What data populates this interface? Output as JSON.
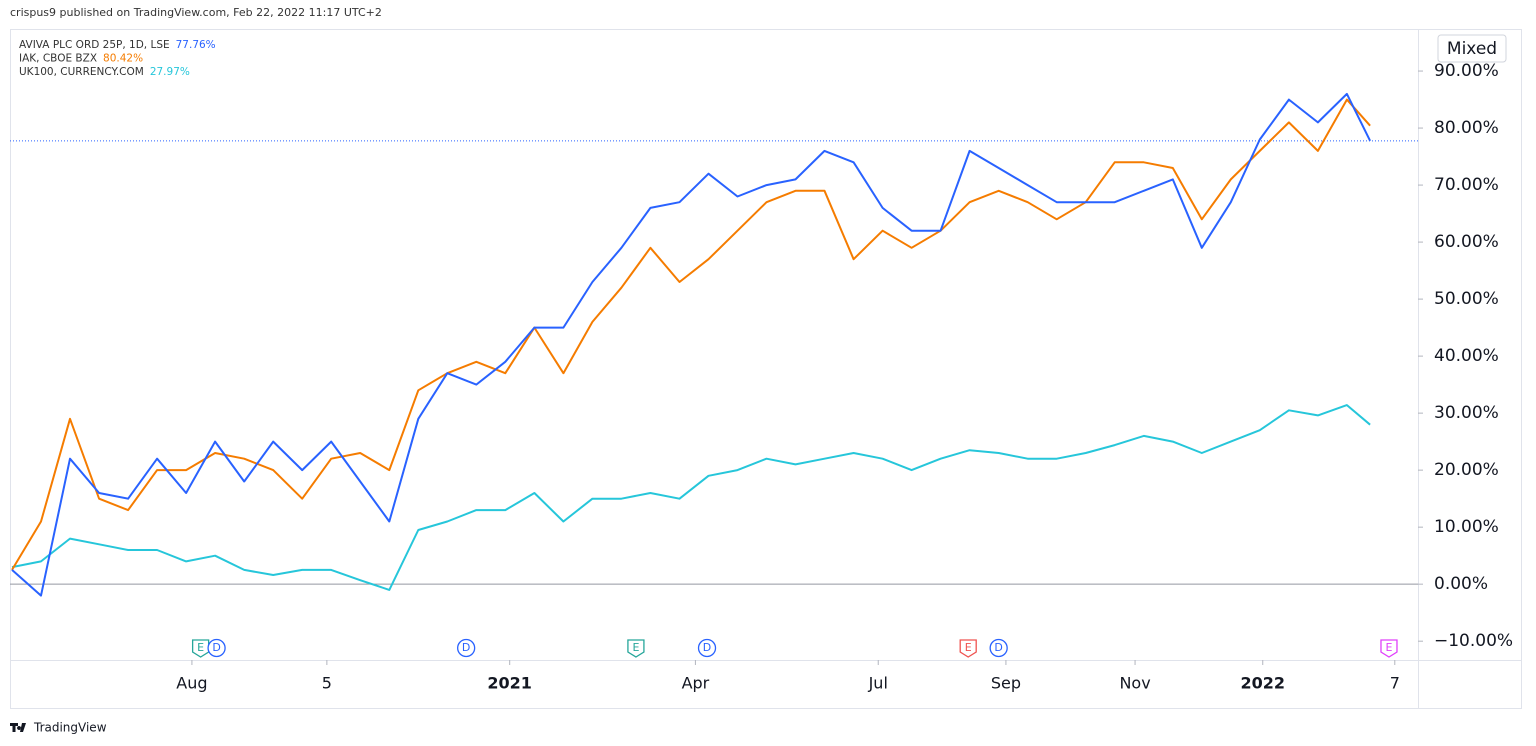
{
  "header": "crispus9 published on TradingView.com, Feb 22, 2022 11:17 UTC+2",
  "footer": "TradingView",
  "scale_button": "Mixed",
  "chart_data": {
    "type": "line",
    "x": [
      0,
      2,
      4,
      6,
      8,
      10,
      12,
      14,
      16,
      18,
      20,
      22,
      24,
      26,
      28,
      30,
      32,
      34,
      36,
      38,
      40,
      42,
      44,
      46,
      48,
      50,
      52,
      54,
      56,
      58,
      60,
      62,
      64,
      66,
      68,
      70,
      72,
      74,
      76,
      78,
      80,
      82,
      84,
      86,
      88,
      90,
      92,
      93.6
    ],
    "series": [
      {
        "name": "AVIVA PLC ORD 25P, 1D, LSE",
        "legend_value": "77.76%",
        "color": "#2962ff",
        "values": [
          2.5,
          -2,
          22,
          16,
          15,
          22,
          16,
          25,
          18,
          25,
          20,
          25,
          18,
          11,
          29,
          37,
          35,
          39,
          45,
          45,
          53,
          59,
          66,
          67,
          72,
          68,
          70,
          71,
          76,
          74,
          66,
          62,
          62,
          76,
          73,
          70,
          67,
          67,
          67,
          69,
          71,
          59,
          67,
          78,
          85,
          81,
          86,
          77.76
        ]
      },
      {
        "name": "IAK, CBOE BZX",
        "legend_value": "80.42%",
        "color": "#f57c00",
        "values": [
          2.5,
          11,
          29,
          15,
          13,
          20,
          20,
          23,
          22,
          20,
          15,
          22,
          23,
          20,
          34,
          37,
          39,
          37,
          45,
          37,
          46,
          52,
          59,
          53,
          57,
          62,
          67,
          69,
          69,
          57,
          62,
          59,
          62,
          67,
          69,
          67,
          64,
          67,
          74,
          74,
          73,
          64,
          71,
          76,
          81,
          76,
          85,
          80.42
        ]
      },
      {
        "name": "UK100, CURRENCY.COM",
        "legend_value": "27.97%",
        "color": "#26c6da",
        "values": [
          3,
          4,
          8,
          7,
          6,
          6,
          4,
          5,
          2.5,
          1.6,
          2.5,
          2.5,
          0.7,
          -1,
          9.5,
          11,
          13,
          13,
          16,
          11,
          15,
          15,
          16,
          15,
          19,
          20,
          22,
          21,
          22,
          23,
          22,
          20,
          22,
          23.5,
          23,
          22,
          22,
          23,
          24.4,
          26,
          25,
          23,
          25,
          27,
          30.5,
          29.6,
          31.4,
          27.97
        ]
      }
    ],
    "xlim": [
      0,
      96.9
    ],
    "xticks": [
      {
        "value": 12.4,
        "label": "Aug"
      },
      {
        "value": 21.7,
        "label": "5"
      },
      {
        "value": 34.3,
        "label": "2021"
      },
      {
        "value": 47.1,
        "label": "Apr"
      },
      {
        "value": 59.7,
        "label": "Jul"
      },
      {
        "value": 68.5,
        "label": "Sep"
      },
      {
        "value": 77.4,
        "label": "Nov"
      },
      {
        "value": 86.2,
        "label": "2022"
      },
      {
        "value": 95.3,
        "label": "7"
      }
    ],
    "ylim": [
      -13.3,
      97.2
    ],
    "yticks": [
      {
        "value": -10,
        "label": "−10.00%"
      },
      {
        "value": 0,
        "label": "0.00%"
      },
      {
        "value": 10,
        "label": "10.00%"
      },
      {
        "value": 20,
        "label": "20.00%"
      },
      {
        "value": 30,
        "label": "30.00%"
      },
      {
        "value": 40,
        "label": "40.00%"
      },
      {
        "value": 50,
        "label": "50.00%"
      },
      {
        "value": 60,
        "label": "60.00%"
      },
      {
        "value": 70,
        "label": "70.00%"
      },
      {
        "value": 80,
        "label": "80.00%"
      },
      {
        "value": 90,
        "label": "90.00%"
      }
    ],
    "events": [
      {
        "label": "E",
        "x": 13.0,
        "color": "#26a69a"
      },
      {
        "label": "D",
        "x": 14.1,
        "color": "#2962ff"
      },
      {
        "label": "D",
        "x": 31.3,
        "color": "#2962ff"
      },
      {
        "label": "E",
        "x": 43.0,
        "color": "#26a69a"
      },
      {
        "label": "D",
        "x": 47.9,
        "color": "#2962ff"
      },
      {
        "label": "E",
        "x": 65.9,
        "color": "#ef5350"
      },
      {
        "label": "D",
        "x": 68.0,
        "color": "#2962ff"
      },
      {
        "label": "E",
        "x": 94.9,
        "color": "#e040fb"
      }
    ]
  }
}
